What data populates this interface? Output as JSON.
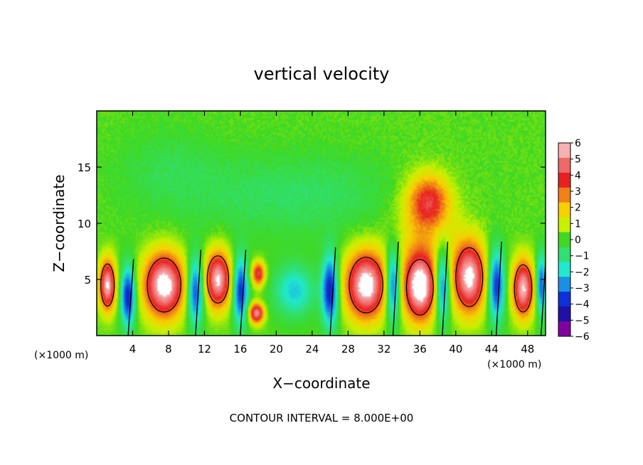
{
  "chart_data": {
    "type": "heatmap",
    "title": "vertical velocity",
    "xlabel": "X−coordinate",
    "ylabel": "Z−coordinate",
    "x_unit_left": "(×1000 m)",
    "x_unit_right": "(×1000 m)",
    "x_ticks": [
      "4",
      "8",
      "12",
      "16",
      "20",
      "24",
      "28",
      "32",
      "36",
      "40",
      "44",
      "48"
    ],
    "y_ticks": [
      "5",
      "10",
      "15"
    ],
    "xlim": [
      0,
      50
    ],
    "ylim": [
      0,
      20
    ],
    "footer": "CONTOUR INTERVAL = 8.000E+00",
    "colorbar": {
      "labels": [
        "6",
        "5",
        "4",
        "3",
        "2",
        "1",
        "0",
        "−1",
        "−2",
        "−3",
        "−4",
        "−5",
        "−6"
      ],
      "colors": [
        "#f8b0b0",
        "#f06868",
        "#e82020",
        "#f08018",
        "#f8d000",
        "#c8f000",
        "#40d820",
        "#30e070",
        "#20e8d0",
        "#1890e8",
        "#1030d8",
        "#2010a8",
        "#8000a0"
      ],
      "range": [
        -6,
        6
      ]
    },
    "updrafts": [
      {
        "x": 7.5,
        "z": 4.5,
        "sx": 2.5,
        "sz": 3.2,
        "w": 6.6
      },
      {
        "x": 18,
        "z": 5.5,
        "sx": 0.8,
        "sz": 1.2,
        "w": 4.5
      },
      {
        "x": 17.8,
        "z": 2,
        "sx": 0.9,
        "sz": 1.0,
        "w": 5.5
      },
      {
        "x": 30,
        "z": 4.5,
        "sx": 2.5,
        "sz": 3.3,
        "w": 6.6
      },
      {
        "x": 36,
        "z": 4.3,
        "sx": 2.0,
        "sz": 3.3,
        "w": 6.6
      },
      {
        "x": 41.5,
        "z": 5.2,
        "sx": 2.0,
        "sz": 3.5,
        "w": 6.2
      },
      {
        "x": 47.5,
        "z": 4.2,
        "sx": 1.3,
        "sz": 2.8,
        "w": 6.0
      },
      {
        "x": 1.2,
        "z": 4.5,
        "sx": 1.0,
        "sz": 2.5,
        "w": 6.0
      },
      {
        "x": 13.5,
        "z": 5.0,
        "sx": 1.6,
        "sz": 2.8,
        "w": 6.0
      },
      {
        "x": 37,
        "z": 12,
        "sx": 2.5,
        "sz": 2.5,
        "w": 3.5
      },
      {
        "x": 36.5,
        "z": 9.5,
        "sx": 4.0,
        "sz": 5.0,
        "w": 1.5
      }
    ],
    "downdrafts": [
      {
        "x": 3.5,
        "z": 3.5,
        "sx": 0.9,
        "sz": 3.0,
        "w": -4.8
      },
      {
        "x": 11,
        "z": 4.0,
        "sx": 1.0,
        "sz": 3.3,
        "w": -4.5
      },
      {
        "x": 16,
        "z": 4.0,
        "sx": 0.9,
        "sz": 3.3,
        "w": -4.5
      },
      {
        "x": 26,
        "z": 4.0,
        "sx": 1.0,
        "sz": 3.5,
        "w": -4.8
      },
      {
        "x": 33,
        "z": 4.5,
        "sx": 0.9,
        "sz": 3.5,
        "w": -4.8
      },
      {
        "x": 38.5,
        "z": 4.5,
        "sx": 0.9,
        "sz": 3.5,
        "w": -4.5
      },
      {
        "x": 44.5,
        "z": 4.5,
        "sx": 1.0,
        "sz": 3.5,
        "w": -4.5
      },
      {
        "x": 49.5,
        "z": 4.5,
        "sx": 0.6,
        "sz": 3.0,
        "w": -4.0
      },
      {
        "x": 22,
        "z": 4.0,
        "sx": 2.5,
        "sz": 2.5,
        "w": -2.5
      },
      {
        "x": 22,
        "z": 12.5,
        "sx": 14,
        "sz": 4,
        "w": -1.0
      },
      {
        "x": 8,
        "z": 15,
        "sx": 6,
        "sz": 4,
        "w": -0.6
      }
    ]
  }
}
